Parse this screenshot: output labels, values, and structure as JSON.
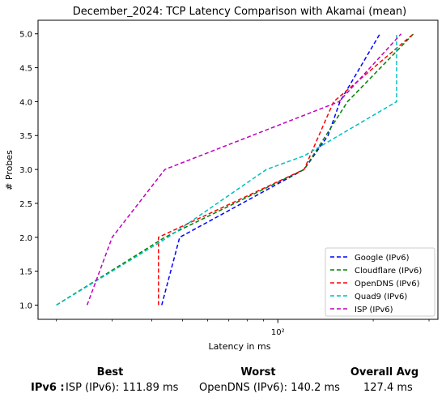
{
  "chart_data": {
    "type": "line",
    "title": "December_2024: TCP Latency Comparison with Akamai (mean)",
    "xlabel": "Latency in ms",
    "ylabel": "# Probes",
    "xscale": "log",
    "xlim": [
      17.5,
      320
    ],
    "ylim": [
      0.79,
      5.2
    ],
    "x_tick_labels": [
      "10²"
    ],
    "y_ticks": [
      1.0,
      1.5,
      2.0,
      2.5,
      3.0,
      3.5,
      4.0,
      4.5,
      5.0
    ],
    "y_tick_labels": [
      "1.0",
      "1.5",
      "2.0",
      "2.5",
      "3.0",
      "3.5",
      "4.0",
      "4.5",
      "5.0"
    ],
    "grid": false,
    "legend_position": "lower-right",
    "line_style": "dashed",
    "series": [
      {
        "name": "Google (IPv6)",
        "color": "#0000ff",
        "x": [
          43,
          49,
          121,
          144,
          157,
          210
        ],
        "y": [
          1,
          2,
          3,
          3.5,
          4,
          5
        ]
      },
      {
        "name": "Cloudflare (IPv6)",
        "color": "#008000",
        "x": [
          20,
          44,
          121,
          166,
          268
        ],
        "y": [
          1,
          2,
          3,
          4,
          5
        ]
      },
      {
        "name": "OpenDNS (IPv6)",
        "color": "#ff0000",
        "x": [
          42,
          42,
          121,
          150,
          268
        ],
        "y": [
          1,
          2,
          3,
          4,
          5
        ]
      },
      {
        "name": "Quad9 (IPv6)",
        "color": "#00bfbf",
        "x": [
          20,
          45,
          92,
          121,
          237,
          237
        ],
        "y": [
          1,
          2,
          3,
          3.2,
          4,
          5
        ]
      },
      {
        "name": "ISP (IPv6)",
        "color": "#bf00bf",
        "x": [
          25,
          30,
          44,
          156,
          245
        ],
        "y": [
          1,
          2,
          3,
          4,
          5
        ]
      }
    ]
  },
  "summary": {
    "row_label": "IPv6 :",
    "best_header": "Best",
    "worst_header": "Worst",
    "avg_header": "Overall Avg",
    "best_value": "ISP (IPv6): 111.89 ms",
    "worst_value": "OpenDNS (IPv6): 140.2 ms",
    "avg_value": "127.4 ms"
  }
}
